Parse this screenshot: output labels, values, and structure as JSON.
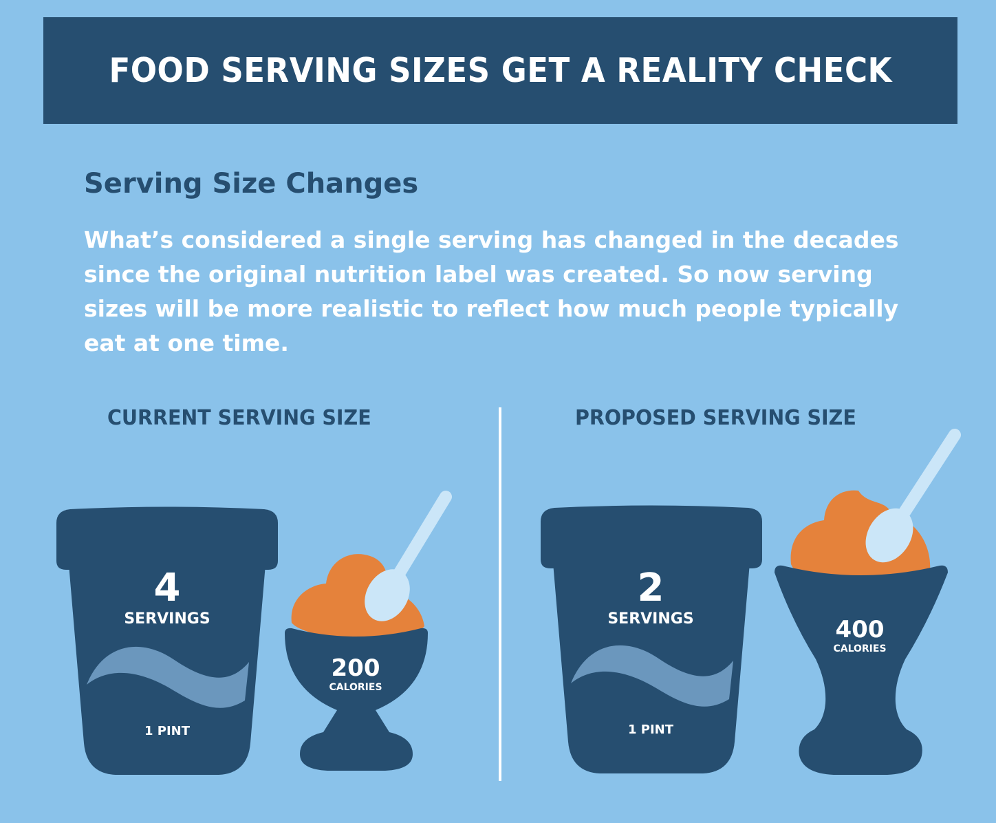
{
  "banner": {
    "title": "FOOD SERVING SIZES GET A REALITY CHECK"
  },
  "section": {
    "heading": "Serving Size Changes",
    "body": "What’s considered a single serving has changed in the decades since the original nutrition label was created. So now serving sizes will be more realistic to reflect how much people typically eat at one time."
  },
  "current": {
    "label": "CURRENT SERVING SIZE",
    "servings_number": "4",
    "servings_label": "SERVINGS",
    "container_size": "1 PINT",
    "calories_number": "200",
    "calories_label": "CALORIES"
  },
  "proposed": {
    "label": "PROPOSED SERVING SIZE",
    "servings_number": "2",
    "servings_label": "SERVINGS",
    "container_size": "1 PINT",
    "calories_number": "400",
    "calories_label": "CALORIES"
  },
  "colors": {
    "background": "#8ac2ea",
    "navy": "#264e70",
    "ice_cream": "#e5823b",
    "spoon": "#cbe6f8",
    "wave": "#6b97bd",
    "text": "#ffffff"
  }
}
